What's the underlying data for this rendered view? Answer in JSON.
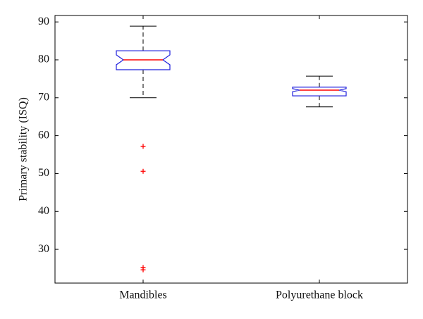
{
  "chart_data": {
    "type": "box",
    "ylabel": "Primary stability (ISQ)",
    "categories": [
      "Mandibles",
      "Polyurethane block"
    ],
    "boxes": [
      {
        "whisker_low": 70,
        "q1": 77.4,
        "notch_low": 78.7,
        "median": 80,
        "notch_high": 81.3,
        "q3": 82.4,
        "whisker_high": 88.9,
        "outliers": [
          57.2,
          50.6,
          25.2,
          24.6
        ]
      },
      {
        "whisker_low": 67.6,
        "q1": 70.5,
        "notch_low": 71.6,
        "median": 72,
        "notch_high": 72.4,
        "q3": 72.8,
        "whisker_high": 75.7,
        "outliers": []
      }
    ],
    "box_color": "#1f1fdd",
    "median_color": "#ff0000",
    "outlier_color": "#ff0000",
    "whisker_color": "#000000",
    "ylim": [
      21.1,
      91.7
    ],
    "yticks": [
      30,
      40,
      50,
      60,
      70,
      80,
      90
    ],
    "notched": true,
    "grid": false
  }
}
